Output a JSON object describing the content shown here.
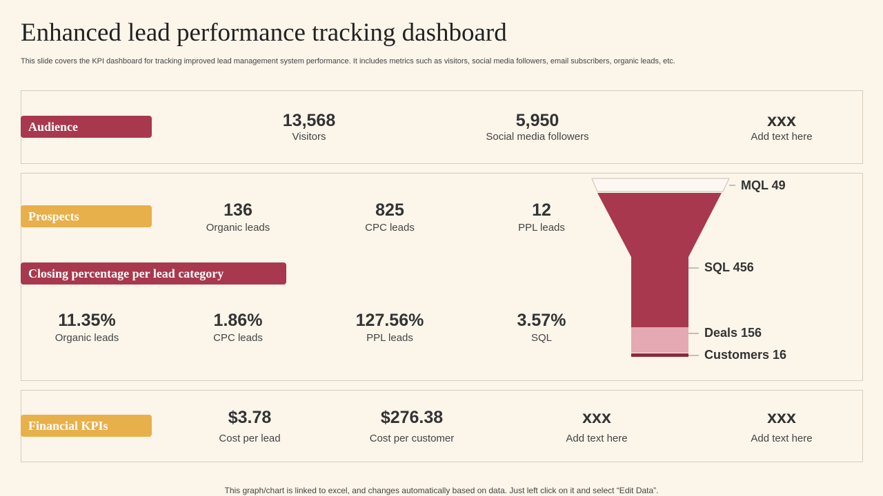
{
  "header": {
    "title": "Enhanced lead performance tracking dashboard",
    "subtitle": "This slide covers the KPI dashboard for tracking improved lead management system performance. It includes metrics such as visitors, social media followers, email subscribers, organic leads, etc."
  },
  "sections": [
    {
      "label": "Audience",
      "metrics": [
        {
          "value": "13,568",
          "label": "Visitors"
        },
        {
          "value": "5,950",
          "label": "Social media followers"
        },
        {
          "value": "xxx",
          "label": "Add text here"
        }
      ]
    },
    {
      "label": "Prospects",
      "metrics": [
        {
          "value": "136",
          "label": "Organic leads"
        },
        {
          "value": "825",
          "label": "CPC leads"
        },
        {
          "value": "12",
          "label": "PPL leads"
        }
      ]
    },
    {
      "label": "Closing percentage per lead category",
      "metrics": [
        {
          "value": "11.35%",
          "label": "Organic leads"
        },
        {
          "value": "1.86%",
          "label": "CPC leads"
        },
        {
          "value": "127.56%",
          "label": "PPL leads"
        },
        {
          "value": "3.57%",
          "label": "SQL"
        }
      ]
    },
    {
      "label": "Financial KPIs",
      "metrics": [
        {
          "value": "$3.78",
          "label": "Cost per lead"
        },
        {
          "value": "$276.38",
          "label": "Cost per customer"
        },
        {
          "value": "xxx",
          "label": "Add text here"
        },
        {
          "value": "xxx",
          "label": "Add text here"
        }
      ]
    }
  ],
  "funnel": {
    "stages": [
      "MQL 49",
      "SQL 456",
      "Deals 156",
      "Customers 16"
    ]
  },
  "footer": "This graph/chart is linked to excel, and changes automatically based on data. Just left click on it and select “Edit Data”."
}
